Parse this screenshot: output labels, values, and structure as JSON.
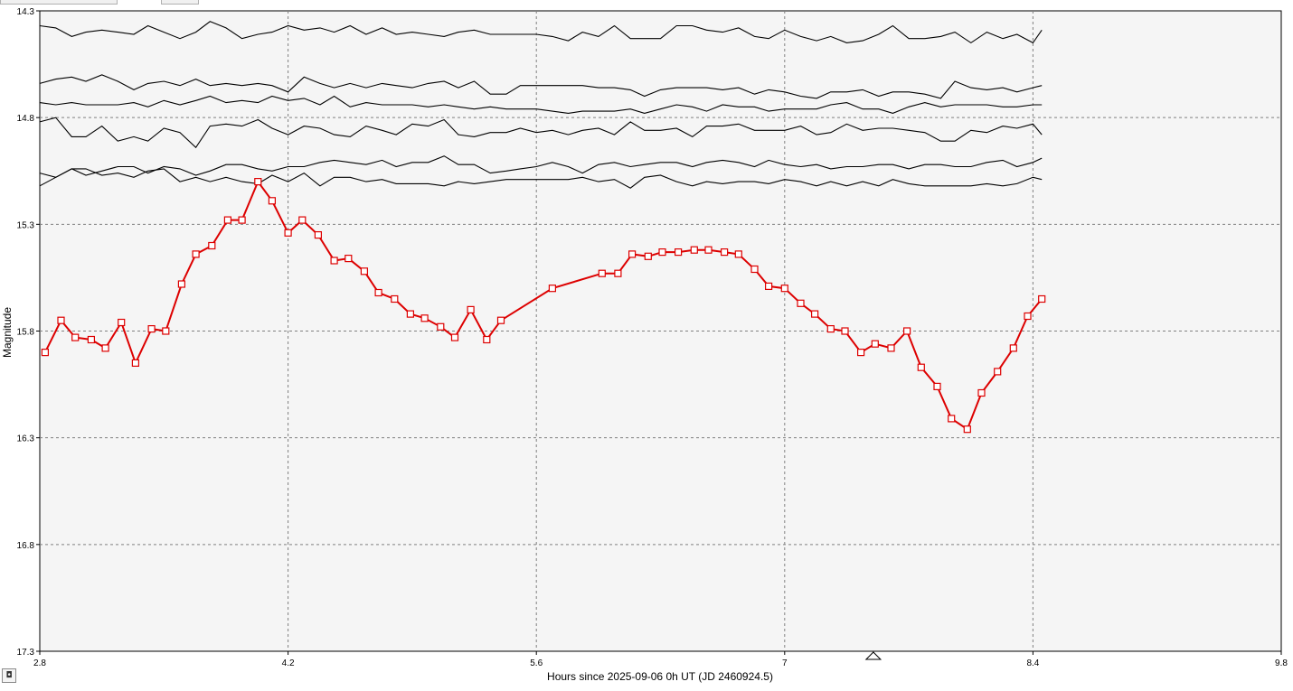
{
  "chart_data": {
    "type": "line",
    "title": "",
    "xlabel": "Hours since 2025-09-06 0h UT (JD 2460924.5)",
    "ylabel": "Magnitude",
    "xlim": [
      2.8,
      9.8
    ],
    "ylim": [
      14.3,
      17.3
    ],
    "y_inverted": true,
    "grid": true,
    "x_ticks": [
      "2.8",
      "4.2",
      "5.6",
      "7",
      "8.4",
      "9.8"
    ],
    "y_ticks": [
      "14.3",
      "14.8",
      "15.3",
      "15.8",
      "16.3",
      "16.8",
      "17.3"
    ],
    "marker_x": 7.5,
    "colors": {
      "target": "#dd0000",
      "comparison": "#000000",
      "plot_bg": "#f5f5f5",
      "grid": "#808080"
    },
    "target_series": {
      "x": [
        2.83,
        2.92,
        3.0,
        3.09,
        3.17,
        3.26,
        3.34,
        3.43,
        3.51,
        3.6,
        3.68,
        3.77,
        3.86,
        3.94,
        4.03,
        4.11,
        4.2,
        4.28,
        4.37,
        4.46,
        4.54,
        4.63,
        4.71,
        4.8,
        4.89,
        4.97,
        5.06,
        5.14,
        5.23,
        5.32,
        5.4,
        5.69,
        5.97,
        6.06,
        6.14,
        6.23,
        6.31,
        6.4,
        6.49,
        6.57,
        6.66,
        6.74,
        6.83,
        6.91,
        7.0,
        7.09,
        7.17,
        7.26,
        7.34,
        7.43,
        7.51,
        7.6,
        7.69,
        7.77,
        7.86,
        7.94,
        8.03,
        8.11,
        8.2,
        8.29,
        8.37,
        8.45
      ],
      "y": [
        15.9,
        15.75,
        15.83,
        15.84,
        15.88,
        15.76,
        15.95,
        15.79,
        15.8,
        15.58,
        15.44,
        15.4,
        15.28,
        15.28,
        15.1,
        15.19,
        15.34,
        15.28,
        15.35,
        15.47,
        15.46,
        15.52,
        15.62,
        15.65,
        15.72,
        15.74,
        15.78,
        15.83,
        15.7,
        15.84,
        15.75,
        15.6,
        15.53,
        15.53,
        15.44,
        15.45,
        15.43,
        15.43,
        15.42,
        15.42,
        15.43,
        15.44,
        15.51,
        15.59,
        15.6,
        15.67,
        15.72,
        15.79,
        15.8,
        15.9,
        15.86,
        15.88,
        15.8,
        15.97,
        16.06,
        16.21,
        16.26,
        16.09,
        15.99,
        15.88,
        15.73,
        15.65
      ]
    },
    "comparison_series": [
      {
        "x": [
          2.8,
          2.89,
          2.98,
          3.06,
          3.15,
          3.24,
          3.33,
          3.41,
          3.5,
          3.59,
          3.68,
          3.76,
          3.85,
          3.94,
          4.03,
          4.11,
          4.2,
          4.29,
          4.38,
          4.46,
          4.55,
          4.64,
          4.73,
          4.81,
          4.9,
          4.99,
          5.08,
          5.16,
          5.25,
          5.34,
          5.43,
          5.51,
          5.6,
          5.69,
          5.78,
          5.86,
          5.95,
          6.04,
          6.13,
          6.21,
          6.3,
          6.39,
          6.48,
          6.56,
          6.65,
          6.74,
          6.83,
          6.91,
          7.0,
          7.09,
          7.18,
          7.26,
          7.35,
          7.44,
          7.53,
          7.61,
          7.7,
          7.79,
          7.88,
          7.96,
          8.05,
          8.14,
          8.23,
          8.31,
          8.4,
          8.45
        ],
        "y": [
          14.37,
          14.38,
          14.42,
          14.4,
          14.39,
          14.4,
          14.41,
          14.37,
          14.4,
          14.43,
          14.4,
          14.35,
          14.38,
          14.43,
          14.41,
          14.4,
          14.37,
          14.39,
          14.38,
          14.4,
          14.37,
          14.41,
          14.38,
          14.41,
          14.4,
          14.41,
          14.42,
          14.4,
          14.39,
          14.41,
          14.41,
          14.41,
          14.41,
          14.42,
          14.44,
          14.4,
          14.42,
          14.37,
          14.43,
          14.43,
          14.43,
          14.37,
          14.37,
          14.39,
          14.4,
          14.38,
          14.42,
          14.43,
          14.39,
          14.42,
          14.44,
          14.42,
          14.45,
          14.44,
          14.41,
          14.37,
          14.43,
          14.43,
          14.42,
          14.4,
          14.45,
          14.4,
          14.43,
          14.41,
          14.45,
          14.39
        ]
      },
      {
        "x": [
          2.8,
          2.89,
          2.98,
          3.06,
          3.15,
          3.24,
          3.33,
          3.41,
          3.5,
          3.59,
          3.68,
          3.76,
          3.85,
          3.94,
          4.03,
          4.11,
          4.2,
          4.29,
          4.38,
          4.46,
          4.55,
          4.64,
          4.73,
          4.81,
          4.9,
          4.99,
          5.08,
          5.16,
          5.25,
          5.34,
          5.43,
          5.51,
          5.6,
          5.69,
          5.78,
          5.86,
          5.95,
          6.04,
          6.13,
          6.21,
          6.3,
          6.39,
          6.48,
          6.56,
          6.65,
          6.74,
          6.83,
          6.91,
          7.0,
          7.09,
          7.18,
          7.26,
          7.35,
          7.44,
          7.53,
          7.61,
          7.7,
          7.79,
          7.88,
          7.96,
          8.05,
          8.14,
          8.23,
          8.31,
          8.4,
          8.45
        ],
        "y": [
          14.64,
          14.62,
          14.61,
          14.63,
          14.6,
          14.63,
          14.67,
          14.64,
          14.63,
          14.65,
          14.62,
          14.65,
          14.64,
          14.65,
          14.64,
          14.65,
          14.68,
          14.61,
          14.64,
          14.66,
          14.64,
          14.66,
          14.64,
          14.65,
          14.66,
          14.64,
          14.63,
          14.66,
          14.63,
          14.69,
          14.69,
          14.65,
          14.65,
          14.65,
          14.65,
          14.65,
          14.66,
          14.66,
          14.67,
          14.7,
          14.67,
          14.66,
          14.66,
          14.66,
          14.67,
          14.66,
          14.69,
          14.67,
          14.68,
          14.7,
          14.71,
          14.68,
          14.68,
          14.67,
          14.7,
          14.68,
          14.68,
          14.69,
          14.71,
          14.63,
          14.66,
          14.67,
          14.66,
          14.68,
          14.66,
          14.65
        ]
      },
      {
        "x": [
          2.8,
          2.89,
          2.98,
          3.06,
          3.15,
          3.24,
          3.33,
          3.41,
          3.5,
          3.59,
          3.68,
          3.76,
          3.85,
          3.94,
          4.03,
          4.11,
          4.2,
          4.29,
          4.38,
          4.46,
          4.55,
          4.64,
          4.73,
          4.81,
          4.9,
          4.99,
          5.08,
          5.16,
          5.25,
          5.34,
          5.43,
          5.51,
          5.6,
          5.69,
          5.78,
          5.86,
          5.95,
          6.04,
          6.13,
          6.21,
          6.3,
          6.39,
          6.48,
          6.56,
          6.65,
          6.74,
          6.83,
          6.91,
          7.0,
          7.09,
          7.18,
          7.26,
          7.35,
          7.44,
          7.53,
          7.61,
          7.7,
          7.79,
          7.88,
          7.96,
          8.05,
          8.14,
          8.23,
          8.31,
          8.4,
          8.45
        ],
        "y": [
          14.73,
          14.74,
          14.73,
          14.74,
          14.74,
          14.74,
          14.73,
          14.75,
          14.72,
          14.74,
          14.72,
          14.7,
          14.73,
          14.72,
          14.73,
          14.7,
          14.72,
          14.71,
          14.74,
          14.7,
          14.75,
          14.73,
          14.74,
          14.74,
          14.74,
          14.75,
          14.74,
          14.75,
          14.76,
          14.75,
          14.76,
          14.76,
          14.76,
          14.77,
          14.78,
          14.77,
          14.77,
          14.77,
          14.76,
          14.78,
          14.76,
          14.74,
          14.75,
          14.77,
          14.74,
          14.75,
          14.75,
          14.77,
          14.76,
          14.76,
          14.76,
          14.74,
          14.73,
          14.76,
          14.76,
          14.78,
          14.75,
          14.73,
          14.75,
          14.74,
          14.74,
          14.74,
          14.75,
          14.75,
          14.74,
          14.74
        ]
      },
      {
        "x": [
          2.8,
          2.89,
          2.98,
          3.06,
          3.15,
          3.24,
          3.33,
          3.41,
          3.5,
          3.59,
          3.68,
          3.76,
          3.85,
          3.94,
          4.03,
          4.11,
          4.2,
          4.29,
          4.38,
          4.46,
          4.55,
          4.64,
          4.73,
          4.81,
          4.9,
          4.99,
          5.08,
          5.16,
          5.25,
          5.34,
          5.43,
          5.51,
          5.6,
          5.69,
          5.78,
          5.86,
          5.95,
          6.04,
          6.13,
          6.21,
          6.3,
          6.39,
          6.48,
          6.56,
          6.65,
          6.74,
          6.83,
          6.91,
          7.0,
          7.09,
          7.18,
          7.26,
          7.35,
          7.44,
          7.53,
          7.61,
          7.7,
          7.79,
          7.88,
          7.96,
          8.05,
          8.14,
          8.23,
          8.31,
          8.4,
          8.45
        ],
        "y": [
          14.82,
          14.8,
          14.89,
          14.89,
          14.84,
          14.91,
          14.89,
          14.91,
          14.85,
          14.87,
          14.94,
          14.84,
          14.83,
          14.84,
          14.81,
          14.85,
          14.88,
          14.84,
          14.85,
          14.88,
          14.89,
          14.84,
          14.86,
          14.88,
          14.83,
          14.84,
          14.81,
          14.88,
          14.89,
          14.87,
          14.87,
          14.85,
          14.87,
          14.86,
          14.88,
          14.86,
          14.85,
          14.88,
          14.82,
          14.86,
          14.86,
          14.85,
          14.89,
          14.84,
          14.84,
          14.83,
          14.86,
          14.86,
          14.86,
          14.84,
          14.88,
          14.87,
          14.83,
          14.86,
          14.85,
          14.85,
          14.86,
          14.87,
          14.91,
          14.91,
          14.86,
          14.87,
          14.84,
          14.85,
          14.83,
          14.88
        ]
      },
      {
        "x": [
          2.8,
          2.89,
          2.98,
          3.06,
          3.15,
          3.24,
          3.33,
          3.41,
          3.5,
          3.59,
          3.68,
          3.76,
          3.85,
          3.94,
          4.03,
          4.11,
          4.2,
          4.29,
          4.38,
          4.46,
          4.55,
          4.64,
          4.73,
          4.81,
          4.9,
          4.99,
          5.08,
          5.16,
          5.25,
          5.34,
          5.43,
          5.51,
          5.6,
          5.69,
          5.78,
          5.86,
          5.95,
          6.04,
          6.13,
          6.21,
          6.3,
          6.39,
          6.48,
          6.56,
          6.65,
          6.74,
          6.83,
          6.91,
          7.0,
          7.09,
          7.18,
          7.26,
          7.35,
          7.44,
          7.53,
          7.61,
          7.7,
          7.79,
          7.88,
          7.96,
          8.05,
          8.14,
          8.23,
          8.31,
          8.4,
          8.45
        ],
        "y": [
          15.06,
          15.08,
          15.04,
          15.07,
          15.05,
          15.03,
          15.03,
          15.06,
          15.03,
          15.04,
          15.07,
          15.05,
          15.02,
          15.02,
          15.04,
          15.05,
          15.03,
          15.03,
          15.01,
          15.0,
          15.01,
          15.02,
          15.0,
          15.03,
          15.01,
          15.01,
          14.98,
          15.02,
          15.02,
          15.06,
          15.05,
          15.04,
          15.03,
          15.01,
          15.03,
          15.06,
          15.02,
          15.01,
          15.03,
          15.02,
          15.01,
          15.01,
          15.03,
          15.01,
          15.0,
          15.01,
          15.03,
          15.0,
          15.02,
          15.03,
          15.02,
          15.04,
          15.03,
          15.03,
          15.02,
          15.02,
          15.04,
          15.02,
          15.02,
          15.03,
          15.03,
          15.01,
          15.0,
          15.03,
          15.01,
          14.99
        ]
      },
      {
        "x": [
          2.8,
          2.89,
          2.98,
          3.06,
          3.15,
          3.24,
          3.33,
          3.41,
          3.5,
          3.59,
          3.68,
          3.76,
          3.85,
          3.94,
          4.03,
          4.11,
          4.2,
          4.29,
          4.38,
          4.46,
          4.55,
          4.64,
          4.73,
          4.81,
          4.9,
          4.99,
          5.08,
          5.16,
          5.25,
          5.34,
          5.43,
          5.51,
          5.6,
          5.69,
          5.78,
          5.86,
          5.95,
          6.04,
          6.13,
          6.21,
          6.3,
          6.39,
          6.48,
          6.56,
          6.65,
          6.74,
          6.83,
          6.91,
          7.0,
          7.09,
          7.18,
          7.26,
          7.35,
          7.44,
          7.53,
          7.61,
          7.7,
          7.79,
          7.88,
          7.96,
          8.05,
          8.14,
          8.23,
          8.31,
          8.4,
          8.45
        ],
        "y": [
          15.12,
          15.08,
          15.04,
          15.04,
          15.07,
          15.06,
          15.08,
          15.05,
          15.04,
          15.1,
          15.08,
          15.1,
          15.08,
          15.1,
          15.11,
          15.07,
          15.1,
          15.06,
          15.12,
          15.08,
          15.08,
          15.1,
          15.09,
          15.11,
          15.11,
          15.11,
          15.12,
          15.1,
          15.11,
          15.1,
          15.09,
          15.09,
          15.09,
          15.09,
          15.09,
          15.08,
          15.1,
          15.09,
          15.13,
          15.08,
          15.07,
          15.1,
          15.12,
          15.1,
          15.11,
          15.1,
          15.1,
          15.11,
          15.09,
          15.1,
          15.12,
          15.1,
          15.12,
          15.1,
          15.12,
          15.09,
          15.11,
          15.12,
          15.12,
          15.12,
          15.12,
          15.11,
          15.12,
          15.11,
          15.08,
          15.09
        ]
      }
    ]
  },
  "ui": {
    "corner_button_glyph": "◘"
  }
}
